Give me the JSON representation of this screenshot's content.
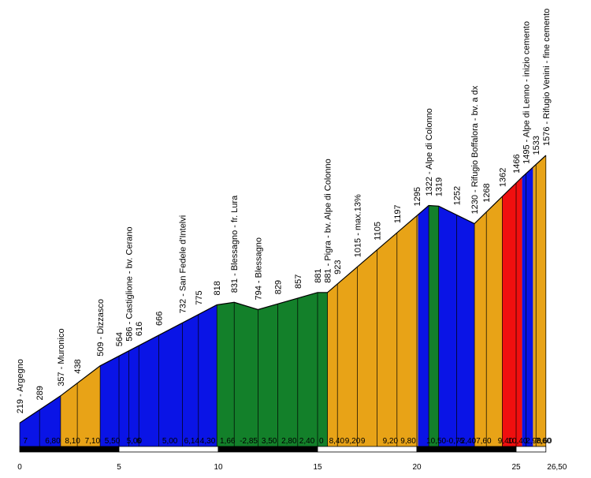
{
  "chart_data": {
    "type": "area",
    "title": "",
    "xlabel": "",
    "ylabel": "",
    "x_total_label": "26,50",
    "x_ticks": [
      "0",
      "5",
      "10",
      "15",
      "20",
      "25"
    ],
    "x_tick_values": [
      0,
      5,
      10,
      15,
      20,
      25
    ],
    "x_max": 26.5,
    "ylim": [
      0,
      1600
    ],
    "colors": {
      "blue": "#0a14e6",
      "orange": "#e8a317",
      "green": "#13802a",
      "red": "#f00f0f"
    },
    "profile": [
      {
        "km": 0,
        "elev": 219
      },
      {
        "km": 2.06,
        "elev": 357
      },
      {
        "km": 4.05,
        "elev": 509
      },
      {
        "km": 9.93,
        "elev": 818
      },
      {
        "km": 10.8,
        "elev": 831
      },
      {
        "km": 12.0,
        "elev": 794
      },
      {
        "km": 15.0,
        "elev": 881
      },
      {
        "km": 15.5,
        "elev": 881
      },
      {
        "km": 20.6,
        "elev": 1322
      },
      {
        "km": 21.1,
        "elev": 1319
      },
      {
        "km": 22.9,
        "elev": 1230
      },
      {
        "km": 25.3,
        "elev": 1466
      },
      {
        "km": 26.5,
        "elev": 1576
      }
    ],
    "segments": [
      {
        "from": 0,
        "to": 2.06,
        "color": "blue"
      },
      {
        "from": 2.06,
        "to": 4.05,
        "color": "orange"
      },
      {
        "from": 4.05,
        "to": 9.93,
        "color": "blue"
      },
      {
        "from": 9.93,
        "to": 15.5,
        "color": "green"
      },
      {
        "from": 15.5,
        "to": 20.06,
        "color": "orange"
      },
      {
        "from": 20.06,
        "to": 20.6,
        "color": "blue"
      },
      {
        "from": 20.6,
        "to": 21.1,
        "color": "green"
      },
      {
        "from": 21.1,
        "to": 22.9,
        "color": "blue"
      },
      {
        "from": 22.9,
        "to": 24.3,
        "color": "orange"
      },
      {
        "from": 24.3,
        "to": 25.3,
        "color": "red"
      },
      {
        "from": 25.3,
        "to": 25.85,
        "color": "blue"
      },
      {
        "from": 25.85,
        "to": 26.5,
        "color": "orange"
      }
    ],
    "point_labels": [
      {
        "km": 0,
        "text": "219 - Argegno"
      },
      {
        "km": 1.0,
        "text": "289"
      },
      {
        "km": 2.06,
        "text": "357 - Muronico"
      },
      {
        "km": 2.9,
        "text": "438"
      },
      {
        "km": 4.05,
        "text": "509 - Dizzasco"
      },
      {
        "km": 5.0,
        "text": "564"
      },
      {
        "km": 5.5,
        "text": "586 - Castiglione - bv. Cerano"
      },
      {
        "km": 6.0,
        "text": "616"
      },
      {
        "km": 7.0,
        "text": "666"
      },
      {
        "km": 8.2,
        "text": "732 - San Fedele d'Intelvi"
      },
      {
        "km": 9.0,
        "text": "775"
      },
      {
        "km": 9.93,
        "text": "818"
      },
      {
        "km": 10.8,
        "text": "831 - Blessagno - fr. Lura"
      },
      {
        "km": 12.0,
        "text": "794 - Blessagno"
      },
      {
        "km": 13.0,
        "text": "829"
      },
      {
        "km": 14.0,
        "text": "857"
      },
      {
        "km": 15.0,
        "text": "881"
      },
      {
        "km": 15.5,
        "text": "881 - Pigra - bv. Alpe di Colonno"
      },
      {
        "km": 16.0,
        "text": "923"
      },
      {
        "km": 17.0,
        "text": "1015 - max.13%"
      },
      {
        "km": 18.0,
        "text": "1105"
      },
      {
        "km": 19.0,
        "text": "1197"
      },
      {
        "km": 20.0,
        "text": "1295"
      },
      {
        "km": 20.6,
        "text": "1322 - Alpe di Colonno"
      },
      {
        "km": 21.1,
        "text": "1319"
      },
      {
        "km": 22.0,
        "text": "1252"
      },
      {
        "km": 22.9,
        "text": "1230 - Rifugio Boffalora - bv. a dx"
      },
      {
        "km": 23.5,
        "text": "1268"
      },
      {
        "km": 24.3,
        "text": "1362"
      },
      {
        "km": 25.0,
        "text": "1466"
      },
      {
        "km": 25.5,
        "text": "1495 - Alpe di Lenno - inizio cemento"
      },
      {
        "km": 26.0,
        "text": "1533"
      },
      {
        "km": 26.5,
        "text": "1576 - Rifugio Venini - fine cemento"
      }
    ],
    "gradient_labels": [
      {
        "km": 0.1,
        "text": "7"
      },
      {
        "km": 1.2,
        "text": "6,80"
      },
      {
        "km": 2.2,
        "text": "8,10"
      },
      {
        "km": 3.2,
        "text": "7,10"
      },
      {
        "km": 4.2,
        "text": "5,50"
      },
      {
        "km": 5.3,
        "text": "5,00"
      },
      {
        "km": 5.8,
        "text": "6"
      },
      {
        "km": 7.1,
        "text": "5,00"
      },
      {
        "km": 8.2,
        "text": "6,14"
      },
      {
        "km": 9.0,
        "text": "4,30"
      },
      {
        "km": 10.0,
        "text": "1,66"
      },
      {
        "km": 11.0,
        "text": "-2,85"
      },
      {
        "km": 12.1,
        "text": "3,50"
      },
      {
        "km": 13.1,
        "text": "2,80"
      },
      {
        "km": 14.0,
        "text": "2,40"
      },
      {
        "km": 15.0,
        "text": "0"
      },
      {
        "km": 15.5,
        "text": "8,40"
      },
      {
        "km": 16.3,
        "text": "9,20"
      },
      {
        "km": 17.1,
        "text": "9"
      },
      {
        "km": 18.2,
        "text": "9,20"
      },
      {
        "km": 19.1,
        "text": "9,80"
      },
      {
        "km": 20.4,
        "text": "10,50"
      },
      {
        "km": 21.4,
        "text": "-0,75"
      },
      {
        "km": 22.0,
        "text": "-2,40"
      },
      {
        "km": 22.9,
        "text": "7,60"
      },
      {
        "km": 24.0,
        "text": "9,40"
      },
      {
        "km": 24.5,
        "text": "10,40"
      },
      {
        "km": 25.4,
        "text": "2,90"
      },
      {
        "km": 25.9,
        "text": "7,60"
      },
      {
        "km": 26.5,
        "text": "8,60"
      }
    ]
  }
}
